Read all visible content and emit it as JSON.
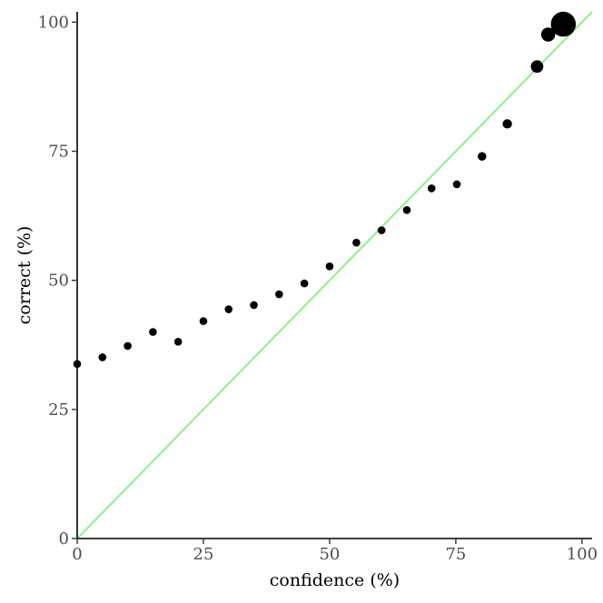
{
  "chart_data": {
    "type": "scatter",
    "title": "",
    "xlabel": "confidence (%)",
    "ylabel": "correct (%)",
    "xlim": [
      0,
      102
    ],
    "ylim": [
      0,
      102
    ],
    "x_ticks": [
      0,
      25,
      50,
      75,
      100
    ],
    "y_ticks": [
      0,
      25,
      50,
      75,
      100
    ],
    "x_tick_labels": [
      "0",
      "25",
      "50",
      "75",
      "100"
    ],
    "y_tick_labels": [
      "0",
      "25",
      "50",
      "75",
      "100"
    ],
    "grid": false,
    "legend": "none",
    "point_color": "#000000",
    "reference_line": {
      "from": [
        0,
        0
      ],
      "to": [
        102,
        102
      ],
      "color": "#90ee90"
    },
    "points": [
      {
        "x": 0,
        "y": 33.8,
        "size": 1
      },
      {
        "x": 5,
        "y": 35.1,
        "size": 1
      },
      {
        "x": 10,
        "y": 37.3,
        "size": 1
      },
      {
        "x": 15,
        "y": 40.0,
        "size": 1
      },
      {
        "x": 20,
        "y": 38.1,
        "size": 1
      },
      {
        "x": 25,
        "y": 42.1,
        "size": 1
      },
      {
        "x": 30,
        "y": 44.4,
        "size": 1
      },
      {
        "x": 35,
        "y": 45.2,
        "size": 1
      },
      {
        "x": 40,
        "y": 47.3,
        "size": 1
      },
      {
        "x": 45,
        "y": 49.4,
        "size": 1
      },
      {
        "x": 50,
        "y": 52.7,
        "size": 1
      },
      {
        "x": 55.3,
        "y": 57.3,
        "size": 1
      },
      {
        "x": 60.3,
        "y": 59.7,
        "size": 1
      },
      {
        "x": 65.3,
        "y": 63.6,
        "size": 1
      },
      {
        "x": 70.2,
        "y": 67.8,
        "size": 1
      },
      {
        "x": 75.2,
        "y": 68.6,
        "size": 1
      },
      {
        "x": 80.2,
        "y": 74.0,
        "size": 1.1
      },
      {
        "x": 85.2,
        "y": 80.3,
        "size": 1.2
      },
      {
        "x": 91.1,
        "y": 91.4,
        "size": 1.6
      },
      {
        "x": 93.3,
        "y": 97.6,
        "size": 1.8
      },
      {
        "x": 96.3,
        "y": 99.6,
        "size": 3.2
      }
    ]
  }
}
